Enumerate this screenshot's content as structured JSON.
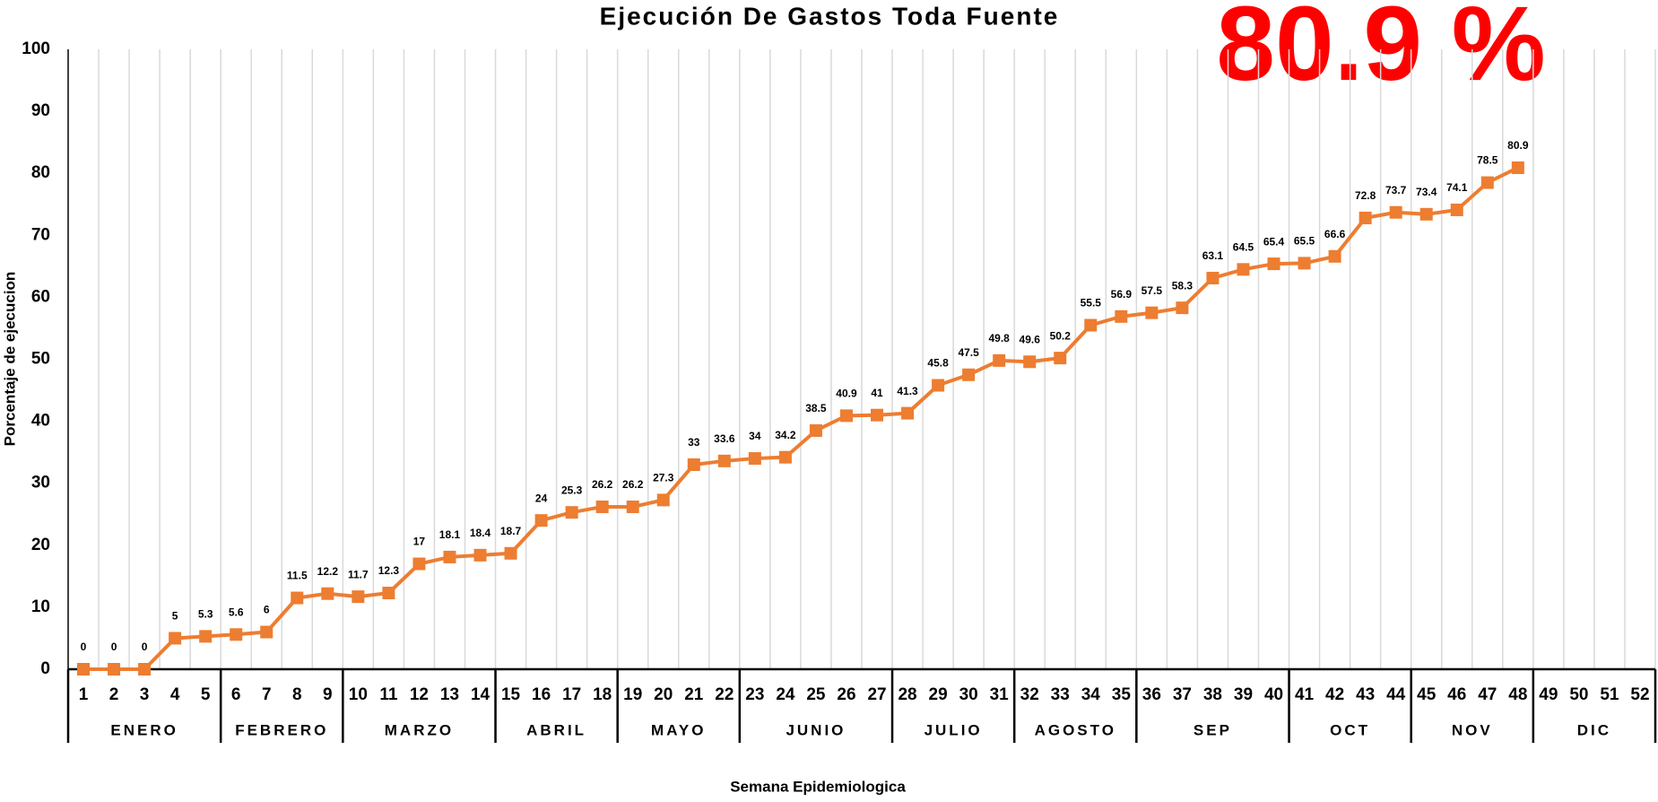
{
  "chart_data": {
    "type": "line",
    "title": "Ejecución De Gastos Toda Fuente",
    "annotation": "80.9 %",
    "x_label": "Semana Epidemiologica",
    "y_label": "Porcentaje  de ejecucion",
    "categories": [
      1,
      2,
      3,
      4,
      5,
      6,
      7,
      8,
      9,
      10,
      11,
      12,
      13,
      14,
      15,
      16,
      17,
      18,
      19,
      20,
      21,
      22,
      23,
      24,
      25,
      26,
      27,
      28,
      29,
      30,
      31,
      32,
      33,
      34,
      35,
      36,
      37,
      38,
      39,
      40,
      41,
      42,
      43,
      44,
      45,
      46,
      47,
      48,
      49,
      50,
      51,
      52
    ],
    "series": [
      {
        "name": "Ejecución",
        "color": "#ed7d31",
        "values": [
          0,
          0,
          0,
          5,
          5.3,
          5.6,
          6,
          11.5,
          12.2,
          11.7,
          12.3,
          17,
          18.1,
          18.4,
          18.7,
          24,
          25.3,
          26.2,
          26.2,
          27.3,
          33,
          33.6,
          34,
          34.2,
          38.5,
          40.9,
          41,
          41.3,
          45.8,
          47.5,
          49.8,
          49.6,
          50.2,
          55.5,
          56.9,
          57.5,
          58.3,
          63.1,
          64.5,
          65.4,
          65.5,
          66.6,
          72.8,
          73.7,
          73.4,
          74.1,
          78.5,
          80.9,
          null,
          null,
          null,
          null
        ]
      }
    ],
    "groups": [
      {
        "label": "ENERO",
        "from": 1,
        "to": 5
      },
      {
        "label": "FEBRERO",
        "from": 6,
        "to": 9
      },
      {
        "label": "MARZO",
        "from": 10,
        "to": 14
      },
      {
        "label": "ABRIL",
        "from": 15,
        "to": 18
      },
      {
        "label": "MAYO",
        "from": 19,
        "to": 22
      },
      {
        "label": "JUNIO",
        "from": 23,
        "to": 27
      },
      {
        "label": "JULIO",
        "from": 28,
        "to": 31
      },
      {
        "label": "AGOSTO",
        "from": 32,
        "to": 35
      },
      {
        "label": "SEP",
        "from": 36,
        "to": 40
      },
      {
        "label": "OCT",
        "from": 41,
        "to": 44
      },
      {
        "label": "NOV",
        "from": 45,
        "to": 48
      },
      {
        "label": "DIC",
        "from": 49,
        "to": 52
      }
    ],
    "ylim": [
      0,
      100
    ],
    "yticks": [
      0,
      10,
      20,
      30,
      40,
      50,
      60,
      70,
      80,
      90,
      100
    ],
    "grid": true,
    "annotation_color": "#ff0000"
  }
}
